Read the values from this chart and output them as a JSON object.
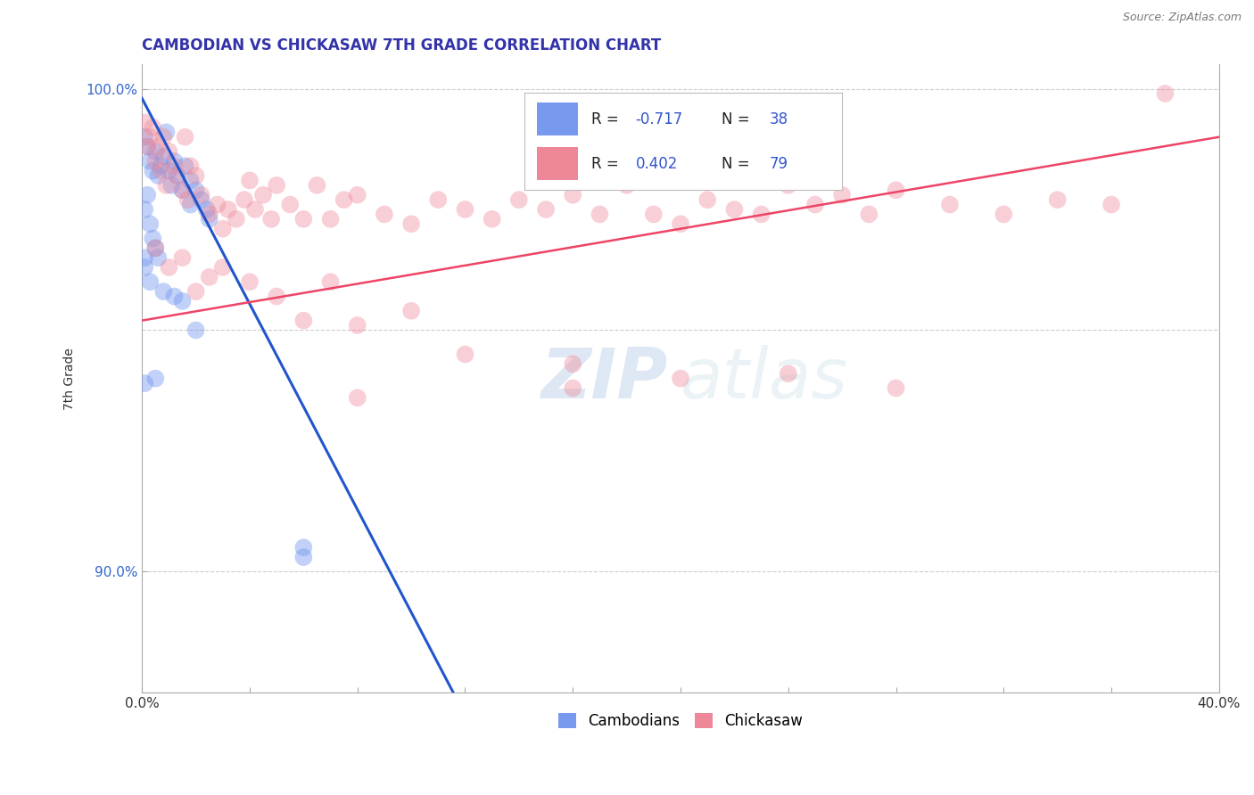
{
  "title": "CAMBODIAN VS CHICKASAW 7TH GRADE CORRELATION CHART",
  "source": "Source: ZipAtlas.com",
  "ylabel": "7th Grade",
  "xlim": [
    0.0,
    0.4
  ],
  "ylim": [
    0.875,
    1.005
  ],
  "xticks": [
    0.0,
    0.04,
    0.08,
    0.12,
    0.16,
    0.2,
    0.24,
    0.28,
    0.32,
    0.36,
    0.4
  ],
  "xticklabels": [
    "0.0%",
    "",
    "",
    "",
    "",
    "",
    "",
    "",
    "",
    "",
    "40.0%"
  ],
  "yticks_right": [
    0.9,
    1.0
  ],
  "yticklabels_right": [
    "90.0%",
    "100.0%"
  ],
  "yticks_grid": [
    0.9,
    0.95,
    1.0
  ],
  "cambodian_color": "#7799ee",
  "cambodian_alpha": 0.45,
  "chickasaw_color": "#ee8899",
  "chickasaw_alpha": 0.4,
  "blue_line_color": "#2255cc",
  "pink_line_color": "#ee4466",
  "dashed_line_color": "#99bbdd",
  "r_cambodian": -0.717,
  "n_cambodian": 38,
  "r_chickasaw": 0.402,
  "n_chickasaw": 79,
  "watermark_zip": "ZIP",
  "watermark_atlas": "atlas",
  "blue_line": [
    [
      0.0,
      0.998
    ],
    [
      0.28,
      0.7
    ]
  ],
  "dashed_line": [
    [
      0.28,
      0.7
    ],
    [
      0.4,
      0.572
    ]
  ],
  "pink_line": [
    [
      0.0,
      0.952
    ],
    [
      0.4,
      0.99
    ]
  ],
  "cambodian_scatter": [
    [
      0.001,
      0.99
    ],
    [
      0.002,
      0.988
    ],
    [
      0.003,
      0.985
    ],
    [
      0.004,
      0.983
    ],
    [
      0.005,
      0.987
    ],
    [
      0.006,
      0.982
    ],
    [
      0.007,
      0.984
    ],
    [
      0.008,
      0.986
    ],
    [
      0.009,
      0.991
    ],
    [
      0.01,
      0.983
    ],
    [
      0.011,
      0.98
    ],
    [
      0.012,
      0.985
    ],
    [
      0.013,
      0.982
    ],
    [
      0.015,
      0.979
    ],
    [
      0.016,
      0.984
    ],
    [
      0.018,
      0.981
    ],
    [
      0.02,
      0.979
    ],
    [
      0.022,
      0.977
    ],
    [
      0.024,
      0.975
    ],
    [
      0.025,
      0.973
    ],
    [
      0.001,
      0.975
    ],
    [
      0.002,
      0.978
    ],
    [
      0.003,
      0.972
    ],
    [
      0.004,
      0.969
    ],
    [
      0.005,
      0.967
    ],
    [
      0.006,
      0.965
    ],
    [
      0.001,
      0.963
    ],
    [
      0.003,
      0.96
    ],
    [
      0.008,
      0.958
    ],
    [
      0.012,
      0.957
    ],
    [
      0.015,
      0.956
    ],
    [
      0.02,
      0.95
    ],
    [
      0.06,
      0.905
    ],
    [
      0.06,
      0.903
    ],
    [
      0.005,
      0.94
    ],
    [
      0.001,
      0.939
    ],
    [
      0.001,
      0.965
    ],
    [
      0.018,
      0.976
    ]
  ],
  "chickasaw_scatter": [
    [
      0.001,
      0.993
    ],
    [
      0.002,
      0.988
    ],
    [
      0.003,
      0.99
    ],
    [
      0.004,
      0.992
    ],
    [
      0.005,
      0.985
    ],
    [
      0.006,
      0.988
    ],
    [
      0.007,
      0.983
    ],
    [
      0.008,
      0.99
    ],
    [
      0.009,
      0.98
    ],
    [
      0.01,
      0.987
    ],
    [
      0.012,
      0.984
    ],
    [
      0.013,
      0.982
    ],
    [
      0.015,
      0.979
    ],
    [
      0.016,
      0.99
    ],
    [
      0.017,
      0.977
    ],
    [
      0.018,
      0.984
    ],
    [
      0.02,
      0.982
    ],
    [
      0.022,
      0.978
    ],
    [
      0.025,
      0.974
    ],
    [
      0.028,
      0.976
    ],
    [
      0.03,
      0.971
    ],
    [
      0.032,
      0.975
    ],
    [
      0.035,
      0.973
    ],
    [
      0.038,
      0.977
    ],
    [
      0.04,
      0.981
    ],
    [
      0.042,
      0.975
    ],
    [
      0.045,
      0.978
    ],
    [
      0.048,
      0.973
    ],
    [
      0.05,
      0.98
    ],
    [
      0.055,
      0.976
    ],
    [
      0.06,
      0.973
    ],
    [
      0.065,
      0.98
    ],
    [
      0.07,
      0.973
    ],
    [
      0.075,
      0.977
    ],
    [
      0.08,
      0.978
    ],
    [
      0.09,
      0.974
    ],
    [
      0.1,
      0.972
    ],
    [
      0.11,
      0.977
    ],
    [
      0.12,
      0.975
    ],
    [
      0.13,
      0.973
    ],
    [
      0.14,
      0.977
    ],
    [
      0.15,
      0.975
    ],
    [
      0.16,
      0.978
    ],
    [
      0.17,
      0.974
    ],
    [
      0.18,
      0.98
    ],
    [
      0.19,
      0.974
    ],
    [
      0.2,
      0.972
    ],
    [
      0.21,
      0.977
    ],
    [
      0.22,
      0.975
    ],
    [
      0.23,
      0.974
    ],
    [
      0.24,
      0.98
    ],
    [
      0.25,
      0.976
    ],
    [
      0.26,
      0.978
    ],
    [
      0.27,
      0.974
    ],
    [
      0.28,
      0.979
    ],
    [
      0.3,
      0.976
    ],
    [
      0.32,
      0.974
    ],
    [
      0.34,
      0.977
    ],
    [
      0.36,
      0.976
    ],
    [
      0.38,
      0.999
    ],
    [
      0.005,
      0.967
    ],
    [
      0.01,
      0.963
    ],
    [
      0.015,
      0.965
    ],
    [
      0.02,
      0.958
    ],
    [
      0.025,
      0.961
    ],
    [
      0.03,
      0.963
    ],
    [
      0.04,
      0.96
    ],
    [
      0.05,
      0.957
    ],
    [
      0.06,
      0.952
    ],
    [
      0.07,
      0.96
    ],
    [
      0.08,
      0.951
    ],
    [
      0.1,
      0.954
    ],
    [
      0.12,
      0.945
    ],
    [
      0.16,
      0.943
    ],
    [
      0.2,
      0.94
    ],
    [
      0.24,
      0.941
    ],
    [
      0.28,
      0.938
    ],
    [
      0.16,
      0.938
    ],
    [
      0.08,
      0.936
    ]
  ]
}
